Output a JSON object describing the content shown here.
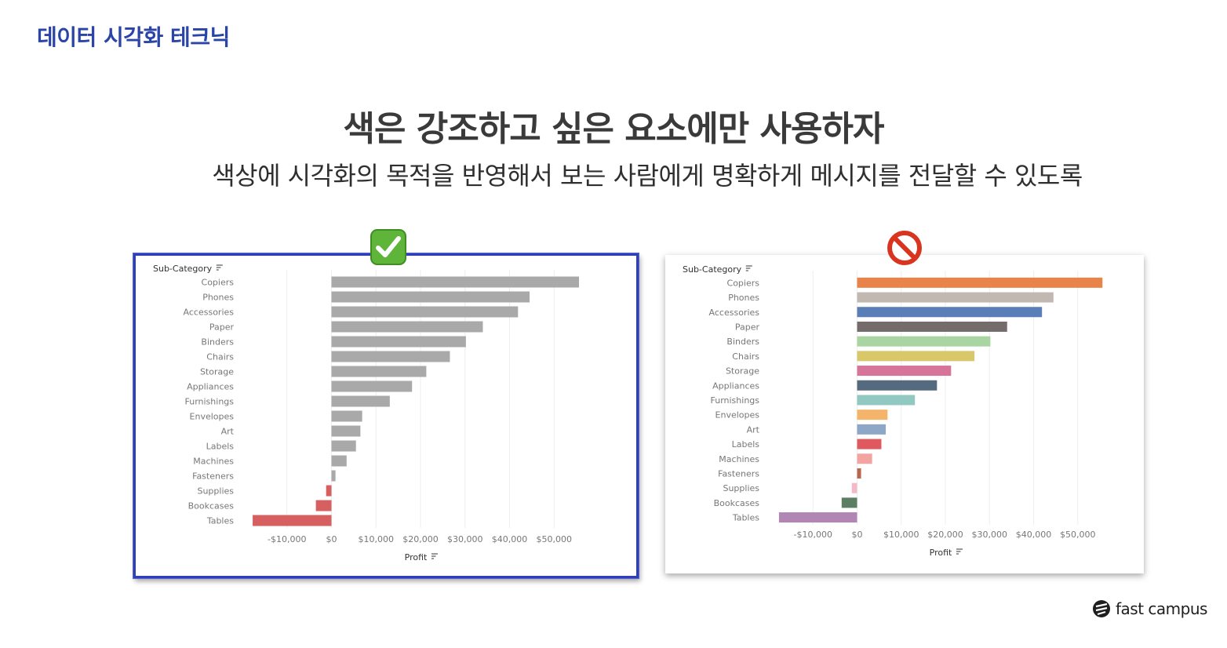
{
  "header": {
    "tag": "데이터 시각화 테크닉",
    "title": "색은 강조하고 싶은 요소에만 사용하자",
    "subtitle": "색상에 시각화의 목적을 반영해서 보는 사람에게 명확하게 메시지를 전달할 수 있도록"
  },
  "badges": {
    "good": "check-mark",
    "bad": "prohibited-sign"
  },
  "logo": {
    "text": "fast campus"
  },
  "chart_data": [
    {
      "type": "bar",
      "orientation": "horizontal",
      "ylabel": "Sub-Category",
      "xlabel": "Profit",
      "categories": [
        "Copiers",
        "Phones",
        "Accessories",
        "Paper",
        "Binders",
        "Chairs",
        "Storage",
        "Appliances",
        "Furnishings",
        "Envelopes",
        "Art",
        "Labels",
        "Machines",
        "Fasteners",
        "Supplies",
        "Bookcases",
        "Tables"
      ],
      "values": [
        55600,
        44500,
        41900,
        34000,
        30200,
        26600,
        21300,
        18100,
        13100,
        6900,
        6500,
        5500,
        3400,
        900,
        -1200,
        -3500,
        -17700
      ],
      "xlim": [
        -20000,
        60000
      ],
      "xticks": [
        -10000,
        0,
        10000,
        20000,
        30000,
        40000,
        50000
      ],
      "xtick_labels": [
        "-$10,000",
        "$0",
        "$10,000",
        "$20,000",
        "$30,000",
        "$40,000",
        "$50,000"
      ],
      "positive_color": "#a9a9a9",
      "negative_color": "#d65f5f",
      "grid": true
    },
    {
      "type": "bar",
      "orientation": "horizontal",
      "ylabel": "Sub-Category",
      "xlabel": "Profit",
      "categories": [
        "Copiers",
        "Phones",
        "Accessories",
        "Paper",
        "Binders",
        "Chairs",
        "Storage",
        "Appliances",
        "Furnishings",
        "Envelopes",
        "Art",
        "Labels",
        "Machines",
        "Fasteners",
        "Supplies",
        "Bookcases",
        "Tables"
      ],
      "values": [
        55600,
        44500,
        41900,
        34000,
        30200,
        26600,
        21300,
        18100,
        13100,
        6900,
        6500,
        5500,
        3400,
        900,
        -1200,
        -3500,
        -17700
      ],
      "xlim": [
        -20000,
        60000
      ],
      "xticks": [
        -10000,
        0,
        10000,
        20000,
        30000,
        40000,
        50000
      ],
      "xtick_labels": [
        "-$10,000",
        "$0",
        "$10,000",
        "$20,000",
        "$30,000",
        "$40,000",
        "$50,000"
      ],
      "colors": [
        "#e8834a",
        "#c2b8b2",
        "#5a7fb8",
        "#746b6b",
        "#a8d5a2",
        "#d8c86a",
        "#d77499",
        "#55697f",
        "#92c8c2",
        "#f4b56a",
        "#8ea7c6",
        "#e0595f",
        "#f3a4a0",
        "#b9654f",
        "#f4b8c9",
        "#5c7f62",
        "#b185b4"
      ],
      "grid": true
    }
  ]
}
